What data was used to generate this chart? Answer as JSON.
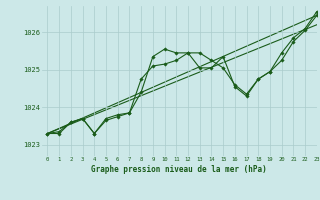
{
  "title": "Graphe pression niveau de la mer (hPa)",
  "bg_color": "#cce8e8",
  "grid_color": "#aacccc",
  "line_color": "#1a5c1a",
  "xlim": [
    -0.5,
    23
  ],
  "ylim": [
    1022.7,
    1026.7
  ],
  "yticks": [
    1023,
    1024,
    1025,
    1026
  ],
  "xticks": [
    0,
    1,
    2,
    3,
    4,
    5,
    6,
    7,
    8,
    9,
    10,
    11,
    12,
    13,
    14,
    15,
    16,
    17,
    18,
    19,
    20,
    21,
    22,
    23
  ],
  "series1": {
    "x": [
      0,
      1,
      2,
      3,
      4,
      5,
      6,
      7,
      8,
      9,
      10,
      11,
      12,
      13,
      14,
      15,
      16,
      17,
      18,
      19,
      20,
      21,
      22,
      23
    ],
    "y": [
      1023.3,
      1023.3,
      1023.6,
      1023.7,
      1023.3,
      1023.7,
      1023.8,
      1023.85,
      1024.4,
      1025.35,
      1025.55,
      1025.45,
      1025.45,
      1025.45,
      1025.25,
      1025.05,
      1024.6,
      1024.35,
      1024.75,
      1024.95,
      1025.25,
      1025.75,
      1026.05,
      1026.45
    ]
  },
  "series2": {
    "x": [
      0,
      1,
      2,
      3,
      4,
      5,
      6,
      7,
      8,
      9,
      10,
      11,
      12,
      13,
      14,
      15,
      16,
      17,
      18,
      19,
      20,
      21,
      22,
      23
    ],
    "y": [
      1023.3,
      1023.35,
      1023.6,
      1023.7,
      1023.3,
      1023.65,
      1023.75,
      1023.85,
      1024.75,
      1025.1,
      1025.15,
      1025.25,
      1025.45,
      1025.05,
      1025.05,
      1025.35,
      1024.55,
      1024.3,
      1024.75,
      1024.95,
      1025.45,
      1025.85,
      1026.1,
      1026.55
    ]
  },
  "series3_line": {
    "x": [
      0,
      23
    ],
    "y": [
      1023.3,
      1026.45
    ]
  },
  "series4_line": {
    "x": [
      0,
      23
    ],
    "y": [
      1023.3,
      1026.2
    ]
  }
}
